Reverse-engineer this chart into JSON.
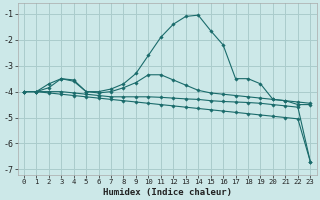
{
  "xlabel": "Humidex (Indice chaleur)",
  "background_color": "#cce8e8",
  "grid_color": "#aacccc",
  "line_color": "#1a6b6b",
  "xlim": [
    -0.5,
    23.5
  ],
  "ylim": [
    -7.2,
    -0.6
  ],
  "yticks": [
    -7,
    -6,
    -5,
    -4,
    -3,
    -2,
    -1
  ],
  "xticks": [
    0,
    1,
    2,
    3,
    4,
    5,
    6,
    7,
    8,
    9,
    10,
    11,
    12,
    13,
    14,
    15,
    16,
    17,
    18,
    19,
    20,
    21,
    22,
    23
  ],
  "lines": [
    {
      "x": [
        0,
        1,
        2,
        3,
        4,
        5,
        6,
        7,
        8,
        9,
        10,
        11,
        12,
        13,
        14,
        15,
        16,
        17,
        18,
        19,
        20,
        21,
        22,
        23
      ],
      "y": [
        -4.0,
        -4.0,
        -3.7,
        -3.5,
        -3.6,
        -4.0,
        -4.0,
        -3.9,
        -3.7,
        -3.3,
        -2.6,
        -1.9,
        -1.4,
        -1.1,
        -1.05,
        -1.65,
        -2.2,
        -3.5,
        -3.5,
        -3.7,
        -4.3,
        -4.35,
        -4.5,
        -4.5
      ]
    },
    {
      "x": [
        0,
        1,
        2,
        3,
        4,
        5,
        6,
        7,
        8,
        9,
        10,
        11,
        12,
        13,
        14,
        15,
        16,
        17,
        18,
        19,
        20,
        21,
        22,
        23
      ],
      "y": [
        -4.0,
        -4.0,
        -3.85,
        -3.5,
        -3.55,
        -4.0,
        -4.05,
        -4.0,
        -3.85,
        -3.65,
        -3.35,
        -3.35,
        -3.55,
        -3.75,
        -3.95,
        -4.05,
        -4.1,
        -4.15,
        -4.2,
        -4.25,
        -4.3,
        -4.35,
        -4.4,
        -4.45
      ]
    },
    {
      "x": [
        0,
        1,
        2,
        3,
        4,
        5,
        6,
        7,
        8,
        9,
        10,
        11,
        12,
        13,
        14,
        15,
        16,
        17,
        18,
        19,
        20,
        21,
        22,
        23
      ],
      "y": [
        -4.0,
        -4.0,
        -4.0,
        -4.0,
        -4.05,
        -4.1,
        -4.15,
        -4.2,
        -4.2,
        -4.2,
        -4.2,
        -4.22,
        -4.25,
        -4.28,
        -4.3,
        -4.35,
        -4.38,
        -4.4,
        -4.42,
        -4.45,
        -4.5,
        -4.55,
        -4.6,
        -6.7
      ]
    },
    {
      "x": [
        0,
        1,
        2,
        3,
        4,
        5,
        6,
        7,
        8,
        9,
        10,
        11,
        12,
        13,
        14,
        15,
        16,
        17,
        18,
        19,
        20,
        21,
        22,
        23
      ],
      "y": [
        -4.0,
        -4.0,
        -4.05,
        -4.1,
        -4.15,
        -4.2,
        -4.25,
        -4.3,
        -4.35,
        -4.4,
        -4.45,
        -4.5,
        -4.55,
        -4.6,
        -4.65,
        -4.7,
        -4.75,
        -4.8,
        -4.85,
        -4.9,
        -4.95,
        -5.0,
        -5.05,
        -6.7
      ]
    }
  ]
}
